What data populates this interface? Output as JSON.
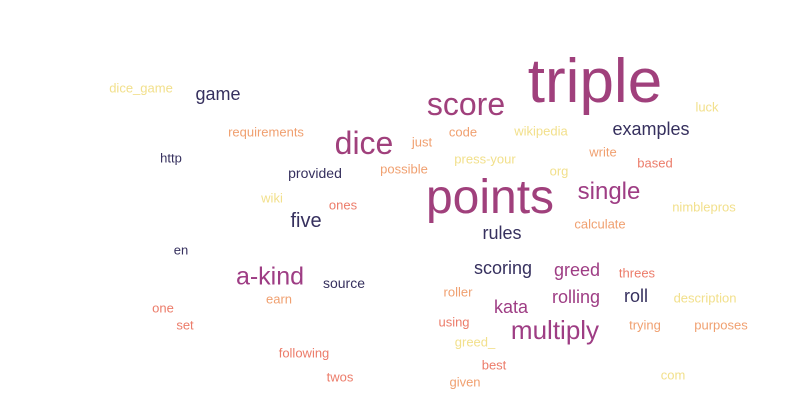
{
  "palette": {
    "large": "#a0407c",
    "magenta": "#9e3d84",
    "navy": "#36305e",
    "coral": "#ec7c6a",
    "peach": "#f0a070",
    "pale": "#f2e08c"
  },
  "words": [
    {
      "text": "triple",
      "color": "#a0407c"
    },
    {
      "text": "points",
      "color": "#a0407c"
    },
    {
      "text": "score",
      "color": "#a0407c"
    },
    {
      "text": "dice",
      "color": "#a0407c"
    },
    {
      "text": "multiply",
      "color": "#9e3d84"
    },
    {
      "text": "a-kind",
      "color": "#9e3d84"
    },
    {
      "text": "single",
      "color": "#9e3d84"
    },
    {
      "text": "examples",
      "color": "#36305e"
    },
    {
      "text": "game",
      "color": "#36305e"
    },
    {
      "text": "five",
      "color": "#36305e"
    },
    {
      "text": "rules",
      "color": "#36305e"
    },
    {
      "text": "scoring",
      "color": "#36305e"
    },
    {
      "text": "greed",
      "color": "#9e3d84"
    },
    {
      "text": "rolling",
      "color": "#9e3d84"
    },
    {
      "text": "roll",
      "color": "#36305e"
    },
    {
      "text": "kata",
      "color": "#9e3d84"
    },
    {
      "text": "provided",
      "color": "#36305e"
    },
    {
      "text": "source",
      "color": "#36305e"
    },
    {
      "text": "http",
      "color": "#36305e"
    },
    {
      "text": "en",
      "color": "#36305e"
    },
    {
      "text": "requirements",
      "color": "#f0a070"
    },
    {
      "text": "dice_game",
      "color": "#f2e08c"
    },
    {
      "text": "just",
      "color": "#f0a070"
    },
    {
      "text": "code",
      "color": "#f0a070"
    },
    {
      "text": "wikipedia",
      "color": "#f2e08c"
    },
    {
      "text": "luck",
      "color": "#f2e08c"
    },
    {
      "text": "press-your",
      "color": "#f2e08c"
    },
    {
      "text": "write",
      "color": "#f0a070"
    },
    {
      "text": "based",
      "color": "#ec7c6a"
    },
    {
      "text": "possible",
      "color": "#f0a070"
    },
    {
      "text": "org",
      "color": "#f2e08c"
    },
    {
      "text": "wiki",
      "color": "#f2e08c"
    },
    {
      "text": "ones",
      "color": "#ec7c6a"
    },
    {
      "text": "calculate",
      "color": "#f0a070"
    },
    {
      "text": "nimblepros",
      "color": "#f2e08c"
    },
    {
      "text": "threes",
      "color": "#ec7c6a"
    },
    {
      "text": "roller",
      "color": "#f0a070"
    },
    {
      "text": "description",
      "color": "#f2e08c"
    },
    {
      "text": "earn",
      "color": "#f0a070"
    },
    {
      "text": "one",
      "color": "#ec7c6a"
    },
    {
      "text": "set",
      "color": "#ec7c6a"
    },
    {
      "text": "using",
      "color": "#ec7c6a"
    },
    {
      "text": "trying",
      "color": "#f0a070"
    },
    {
      "text": "purposes",
      "color": "#f0a070"
    },
    {
      "text": "greed_",
      "color": "#f2e08c"
    },
    {
      "text": "following",
      "color": "#ec7c6a"
    },
    {
      "text": "best",
      "color": "#ec7c6a"
    },
    {
      "text": "twos",
      "color": "#ec7c6a"
    },
    {
      "text": "given",
      "color": "#f0a070"
    },
    {
      "text": "com",
      "color": "#f2e08c"
    }
  ]
}
